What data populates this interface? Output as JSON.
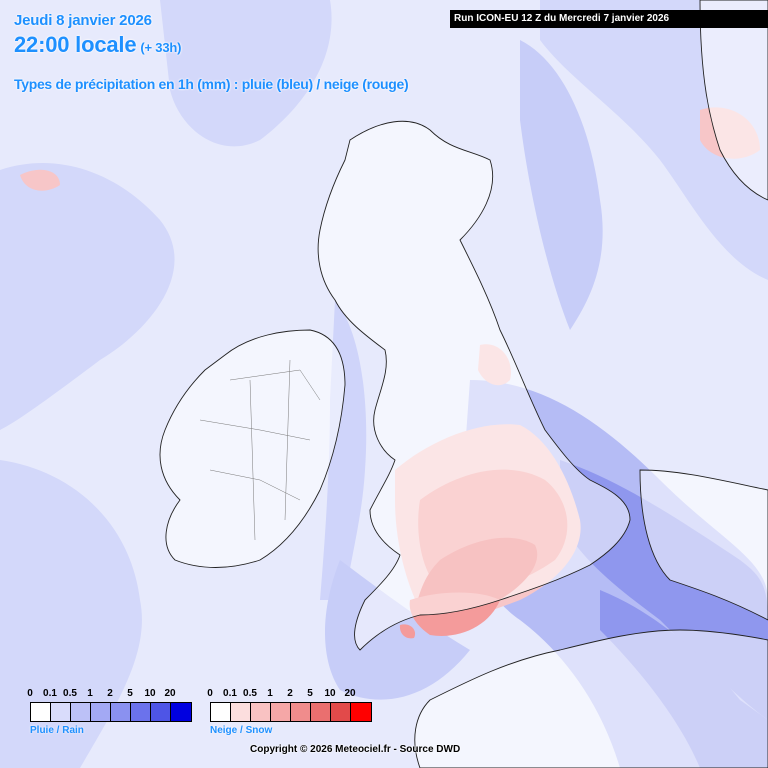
{
  "header": {
    "date": "Jeudi 8 janvier 2026",
    "time": "22:00 locale",
    "offset": "(+ 33h)",
    "subtitle": "Types de précipitation en 1h (mm) : pluie (bleu) / neige (rouge)"
  },
  "run_banner": "Run ICON-EU 12 Z du Mercredi 7 janvier 2026",
  "legend_rain": {
    "label": "Pluie / Rain",
    "ticks": [
      "0",
      "0.1",
      "0.5",
      "1",
      "2",
      "5",
      "10",
      "20"
    ],
    "colors": [
      "#ffffff",
      "#d9dcfb",
      "#bcc1f7",
      "#a3a9f4",
      "#8a91f0",
      "#6b72ec",
      "#4e55e6",
      "#0000e0"
    ]
  },
  "legend_snow": {
    "label": "Neige / Snow",
    "ticks": [
      "0",
      "0.1",
      "0.5",
      "1",
      "2",
      "5",
      "10",
      "20"
    ],
    "colors": [
      "#ffffff",
      "#fcdede",
      "#f9c2c2",
      "#f5a7a7",
      "#f08c8c",
      "#ea6f6f",
      "#e24a4a",
      "#ff0000"
    ]
  },
  "copyright": "Copyright © 2026 Meteociel.fr - Source DWD",
  "colors": {
    "sea_base": "#e7eafc",
    "rain_light": "#d3d8fa",
    "rain_medium": "#b5bcf5",
    "rain_strong": "#8f97ee",
    "snow_light": "#f7c6c8",
    "snow_medium": "#f49b9b",
    "snow_strong": "#ee7878",
    "land": "#ffffff",
    "coastline": "#222222",
    "title_blue": "#1e90ff"
  }
}
